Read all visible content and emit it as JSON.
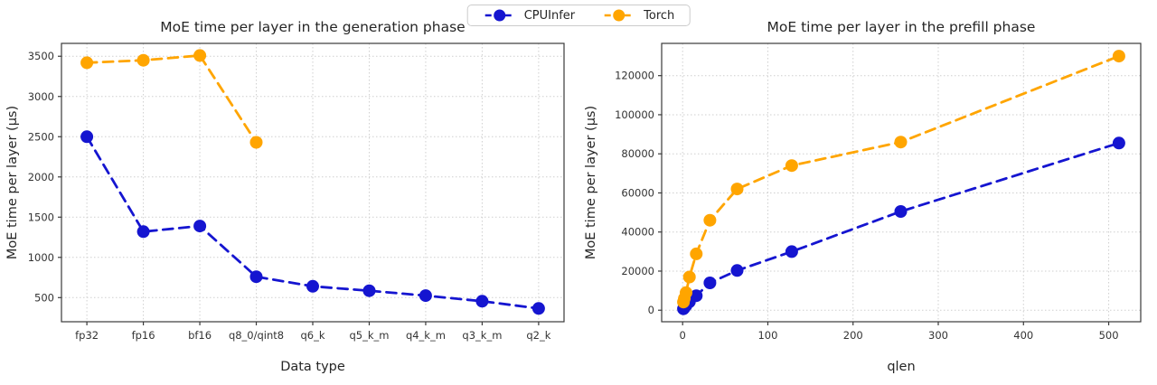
{
  "legend": {
    "entries": [
      {
        "label": "CPUInfer",
        "color": "#1515d0"
      },
      {
        "label": "Torch",
        "color": "#ffa500"
      }
    ]
  },
  "chart_data": [
    {
      "type": "line",
      "title": "MoE time per layer in the generation phase",
      "xlabel": "Data type",
      "ylabel": "MoE time per layer (µs)",
      "x_type": "categorical",
      "categories": [
        "fp32",
        "fp16",
        "bf16",
        "q8_0/qint8",
        "q6_k",
        "q5_k_m",
        "q4_k_m",
        "q3_k_m",
        "q2_k"
      ],
      "yticks": [
        500,
        1000,
        1500,
        2000,
        2500,
        3000,
        3500
      ],
      "ylim": [
        200,
        3660
      ],
      "grid": true,
      "legend_position": "top-center-figure",
      "line_style": "dashed",
      "series": [
        {
          "name": "CPUInfer",
          "color": "#1515d0",
          "values": [
            2500,
            1320,
            1390,
            760,
            640,
            585,
            525,
            455,
            365
          ]
        },
        {
          "name": "Torch",
          "color": "#ffa500",
          "values": [
            3420,
            3450,
            3510,
            2430,
            null,
            null,
            null,
            null,
            null
          ]
        }
      ]
    },
    {
      "type": "line",
      "title": "MoE time per layer in the prefill phase",
      "xlabel": "qlen",
      "ylabel": "MoE time per layer (µs)",
      "x_type": "numeric",
      "x": [
        1,
        2,
        4,
        8,
        16,
        32,
        64,
        128,
        256,
        512
      ],
      "xticks": [
        0,
        100,
        200,
        300,
        400,
        500
      ],
      "xlim": [
        -24.6,
        537.6
      ],
      "yticks": [
        0,
        20000,
        40000,
        60000,
        80000,
        100000,
        120000
      ],
      "ylim": [
        -5900,
        136500
      ],
      "grid": true,
      "line_style": "dashed",
      "series": [
        {
          "name": "CPUInfer",
          "color": "#1515d0",
          "values": [
            700,
            1300,
            2400,
            4300,
            7400,
            14000,
            20300,
            30000,
            50500,
            85500
          ]
        },
        {
          "name": "Torch",
          "color": "#ffa500",
          "values": [
            4200,
            6000,
            9000,
            17000,
            28800,
            46000,
            62000,
            74000,
            86000,
            130000
          ]
        }
      ]
    }
  ]
}
